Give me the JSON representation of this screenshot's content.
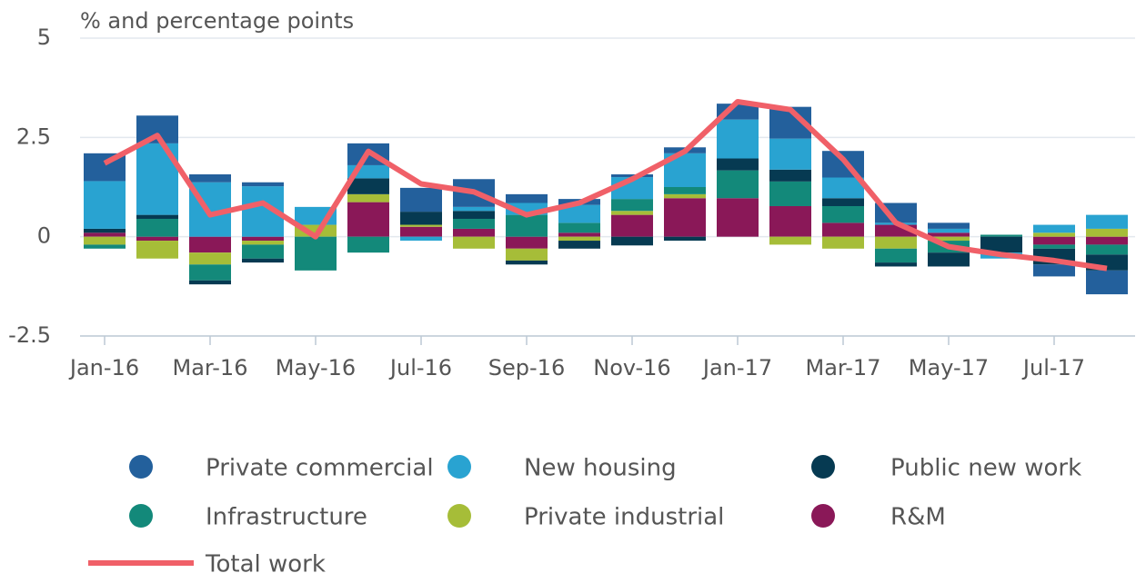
{
  "chart_data": {
    "type": "bar",
    "stacked": true,
    "title": "% and percentage points",
    "categories": [
      "Jan-16",
      null,
      "Mar-16",
      null,
      "May-16",
      null,
      "Jul-16",
      null,
      "Sep-16",
      null,
      "Nov-16",
      null,
      "Jan-17",
      null,
      "Mar-17",
      null,
      "May-17",
      null,
      "Jul-17",
      null
    ],
    "ylim": [
      -2.5,
      5
    ],
    "yticks": [
      5,
      2.5,
      0,
      -2.5
    ],
    "grid": true,
    "series": [
      {
        "name": "R&M",
        "color": "#8a1858",
        "values": [
          0.1,
          -0.1,
          -0.4,
          -0.1,
          0,
          0.87,
          0.25,
          0.2,
          -0.3,
          0.1,
          0.55,
          0.97,
          0.97,
          0.77,
          0.35,
          0.3,
          0.1,
          0,
          -0.2,
          -0.2
        ]
      },
      {
        "name": "Private industrial",
        "color": "#a6bd38",
        "values": [
          -0.2,
          -0.45,
          -0.3,
          -0.1,
          0.3,
          0.2,
          0.05,
          -0.3,
          -0.3,
          -0.1,
          0.1,
          0.1,
          0,
          -0.2,
          -0.3,
          -0.3,
          -0.1,
          0,
          0.1,
          0.2
        ]
      },
      {
        "name": "Infrastructure",
        "color": "#13897a",
        "values": [
          -0.1,
          0.45,
          -0.4,
          -0.35,
          -0.85,
          -0.4,
          0,
          0.25,
          0.55,
          0.25,
          0.3,
          0.18,
          0.7,
          0.62,
          0.42,
          -0.35,
          -0.3,
          0.05,
          -0.1,
          -0.25
        ]
      },
      {
        "name": "Public new work",
        "color": "#063a52",
        "values": [
          0.1,
          0.1,
          -0.1,
          -0.1,
          0,
          0.4,
          0.33,
          0.2,
          -0.1,
          -0.2,
          -0.22,
          -0.1,
          0.3,
          0.3,
          0.2,
          -0.1,
          -0.35,
          -0.4,
          -0.4,
          -0.4
        ]
      },
      {
        "name": "New housing",
        "color": "#29a3d1",
        "values": [
          1.2,
          1.8,
          1.37,
          1.27,
          0.45,
          0.33,
          -0.1,
          0.1,
          0.3,
          0.45,
          0.55,
          0.85,
          0.98,
          0.78,
          0.52,
          0.05,
          0.1,
          -0.15,
          0.2,
          0.35
        ]
      },
      {
        "name": "Private commercial",
        "color": "#23609c",
        "values": [
          0.7,
          0.7,
          0.2,
          0.1,
          0,
          0.55,
          0.6,
          0.7,
          0.22,
          0.15,
          0.07,
          0.15,
          0.4,
          0.8,
          0.67,
          0.5,
          0.15,
          0,
          -0.3,
          -0.6
        ]
      }
    ],
    "line": {
      "name": "Total work",
      "color": "#f06068",
      "values": [
        1.85,
        2.55,
        0.55,
        0.85,
        0.0,
        2.15,
        1.33,
        1.13,
        0.55,
        0.85,
        1.45,
        2.15,
        3.4,
        3.2,
        1.95,
        0.35,
        -0.25,
        -0.45,
        -0.6,
        -0.8
      ]
    },
    "legend_order": [
      5,
      4,
      3,
      2,
      1,
      0
    ]
  }
}
